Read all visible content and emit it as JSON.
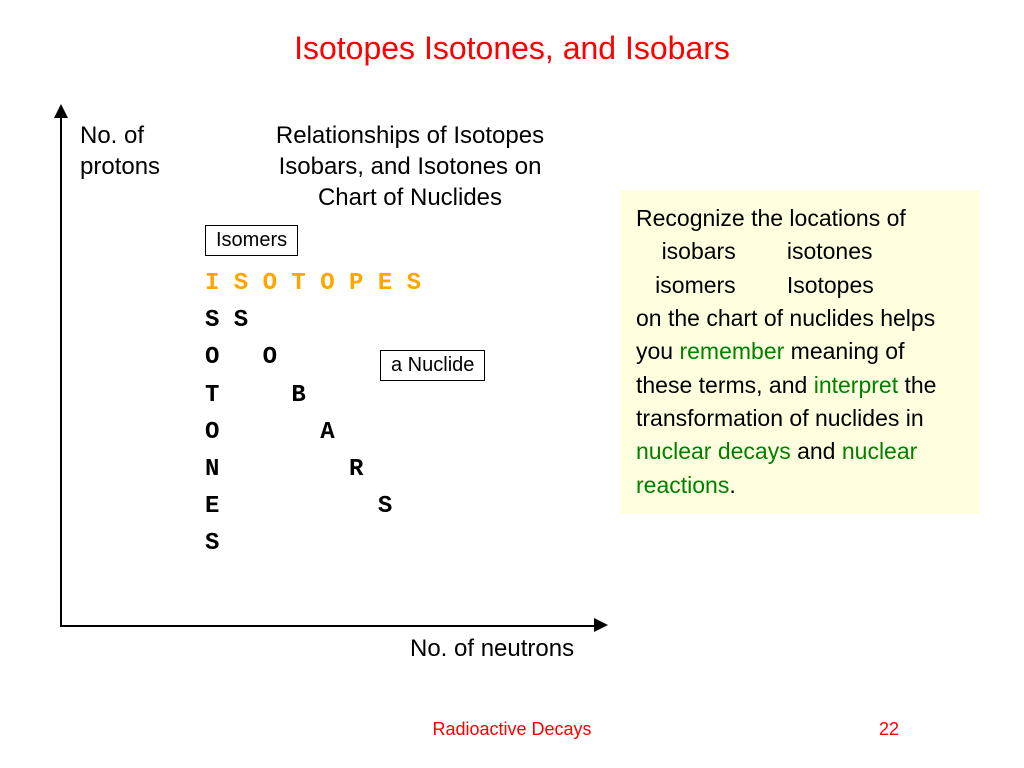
{
  "title": "Isotopes Isotones, and Isobars",
  "chart": {
    "y_label_line1": "No. of",
    "y_label_line2": "protons",
    "subtitle_line1": "Relationships of Isotopes",
    "subtitle_line2": "Isobars, and Isotones on",
    "subtitle_line3": "Chart of Nuclides",
    "isomers_label": "Isomers",
    "nuclide_label": "a Nuclide",
    "x_label": "No. of neutrons",
    "rows": {
      "r0": "I S O T O P E S",
      "r1": "S S",
      "r2": "O   O",
      "r3": "T     B",
      "r4": "O       A",
      "r5": "N         R",
      "r6": "E           S",
      "r7": "S"
    }
  },
  "panel": {
    "t1": "Recognize the locations of",
    "t2a": "isobars",
    "t2b": "isotones",
    "t3a": "isomers",
    "t3b": "Isotopes",
    "t4": "on the chart of nuclides helps you ",
    "g1": "remember",
    "t5": " meaning of these terms, and ",
    "g2": "interpret",
    "t6": " the transformation of nuclides in ",
    "g3": "nuclear decays",
    "t7": " and ",
    "g4": "nuclear reactions",
    "t8": "."
  },
  "footer": {
    "label": "Radioactive Decays",
    "page": "22"
  },
  "colors": {
    "title": "#ff0000",
    "highlight": "#ffa500",
    "green": "#008000",
    "panel_bg": "#ffffe0"
  }
}
